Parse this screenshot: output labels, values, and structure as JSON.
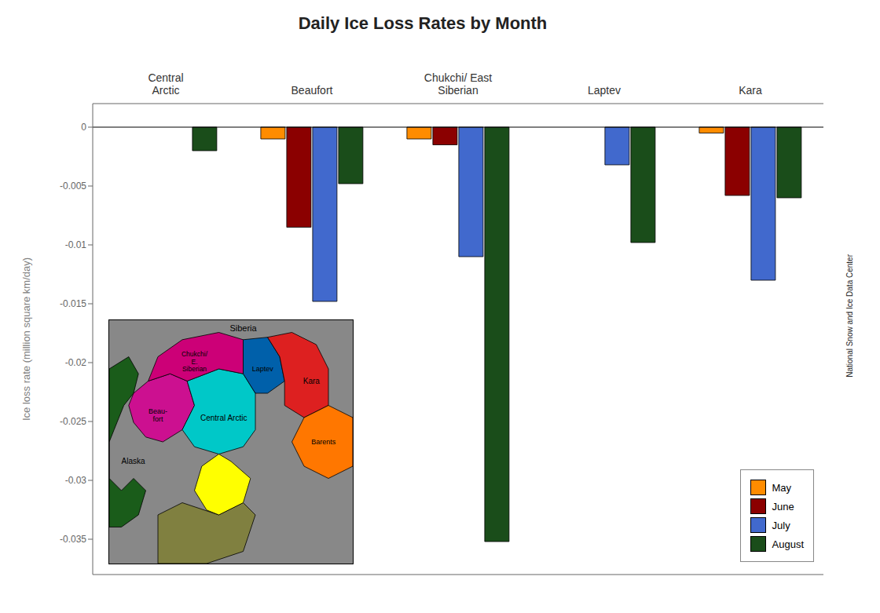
{
  "chart_data": {
    "type": "bar",
    "title": "Daily Ice Loss Rates by Month",
    "y_label": "Ice loss rate (million square km/day)",
    "categories": [
      "Central\nArctic",
      "Beaufort",
      "Chukchi/ East\nSiberian",
      "Laptev",
      "Kara"
    ],
    "series": [
      {
        "name": "May",
        "color": "#FF8C00",
        "values": [
          0,
          -0.001,
          -0.001,
          0,
          -0.0005
        ]
      },
      {
        "name": "June",
        "color": "#8B0000",
        "values": [
          0,
          -0.0085,
          -0.0015,
          0,
          -0.0058
        ]
      },
      {
        "name": "July",
        "color": "#4169CD",
        "values": [
          0,
          -0.0148,
          -0.011,
          -0.0032,
          -0.013
        ]
      },
      {
        "name": "August",
        "color": "#1A4D1A",
        "values": [
          -0.002,
          -0.0048,
          -0.0352,
          -0.0098,
          -0.006
        ]
      }
    ],
    "ylim": [
      -0.038,
      0.002
    ],
    "yticks": [
      0,
      -0.005,
      -0.01,
      -0.015,
      -0.02,
      -0.025,
      -0.03,
      -0.035
    ],
    "grid": false,
    "legend": "lower right",
    "annotations": [
      "Siberia",
      "Alaska",
      "Beau-\nfort",
      "Central Arctic",
      "Chukchi/\nE.\nSiberian",
      "Laptev",
      "Kara",
      "Barents",
      "National Snow and Ice Data Center"
    ]
  }
}
